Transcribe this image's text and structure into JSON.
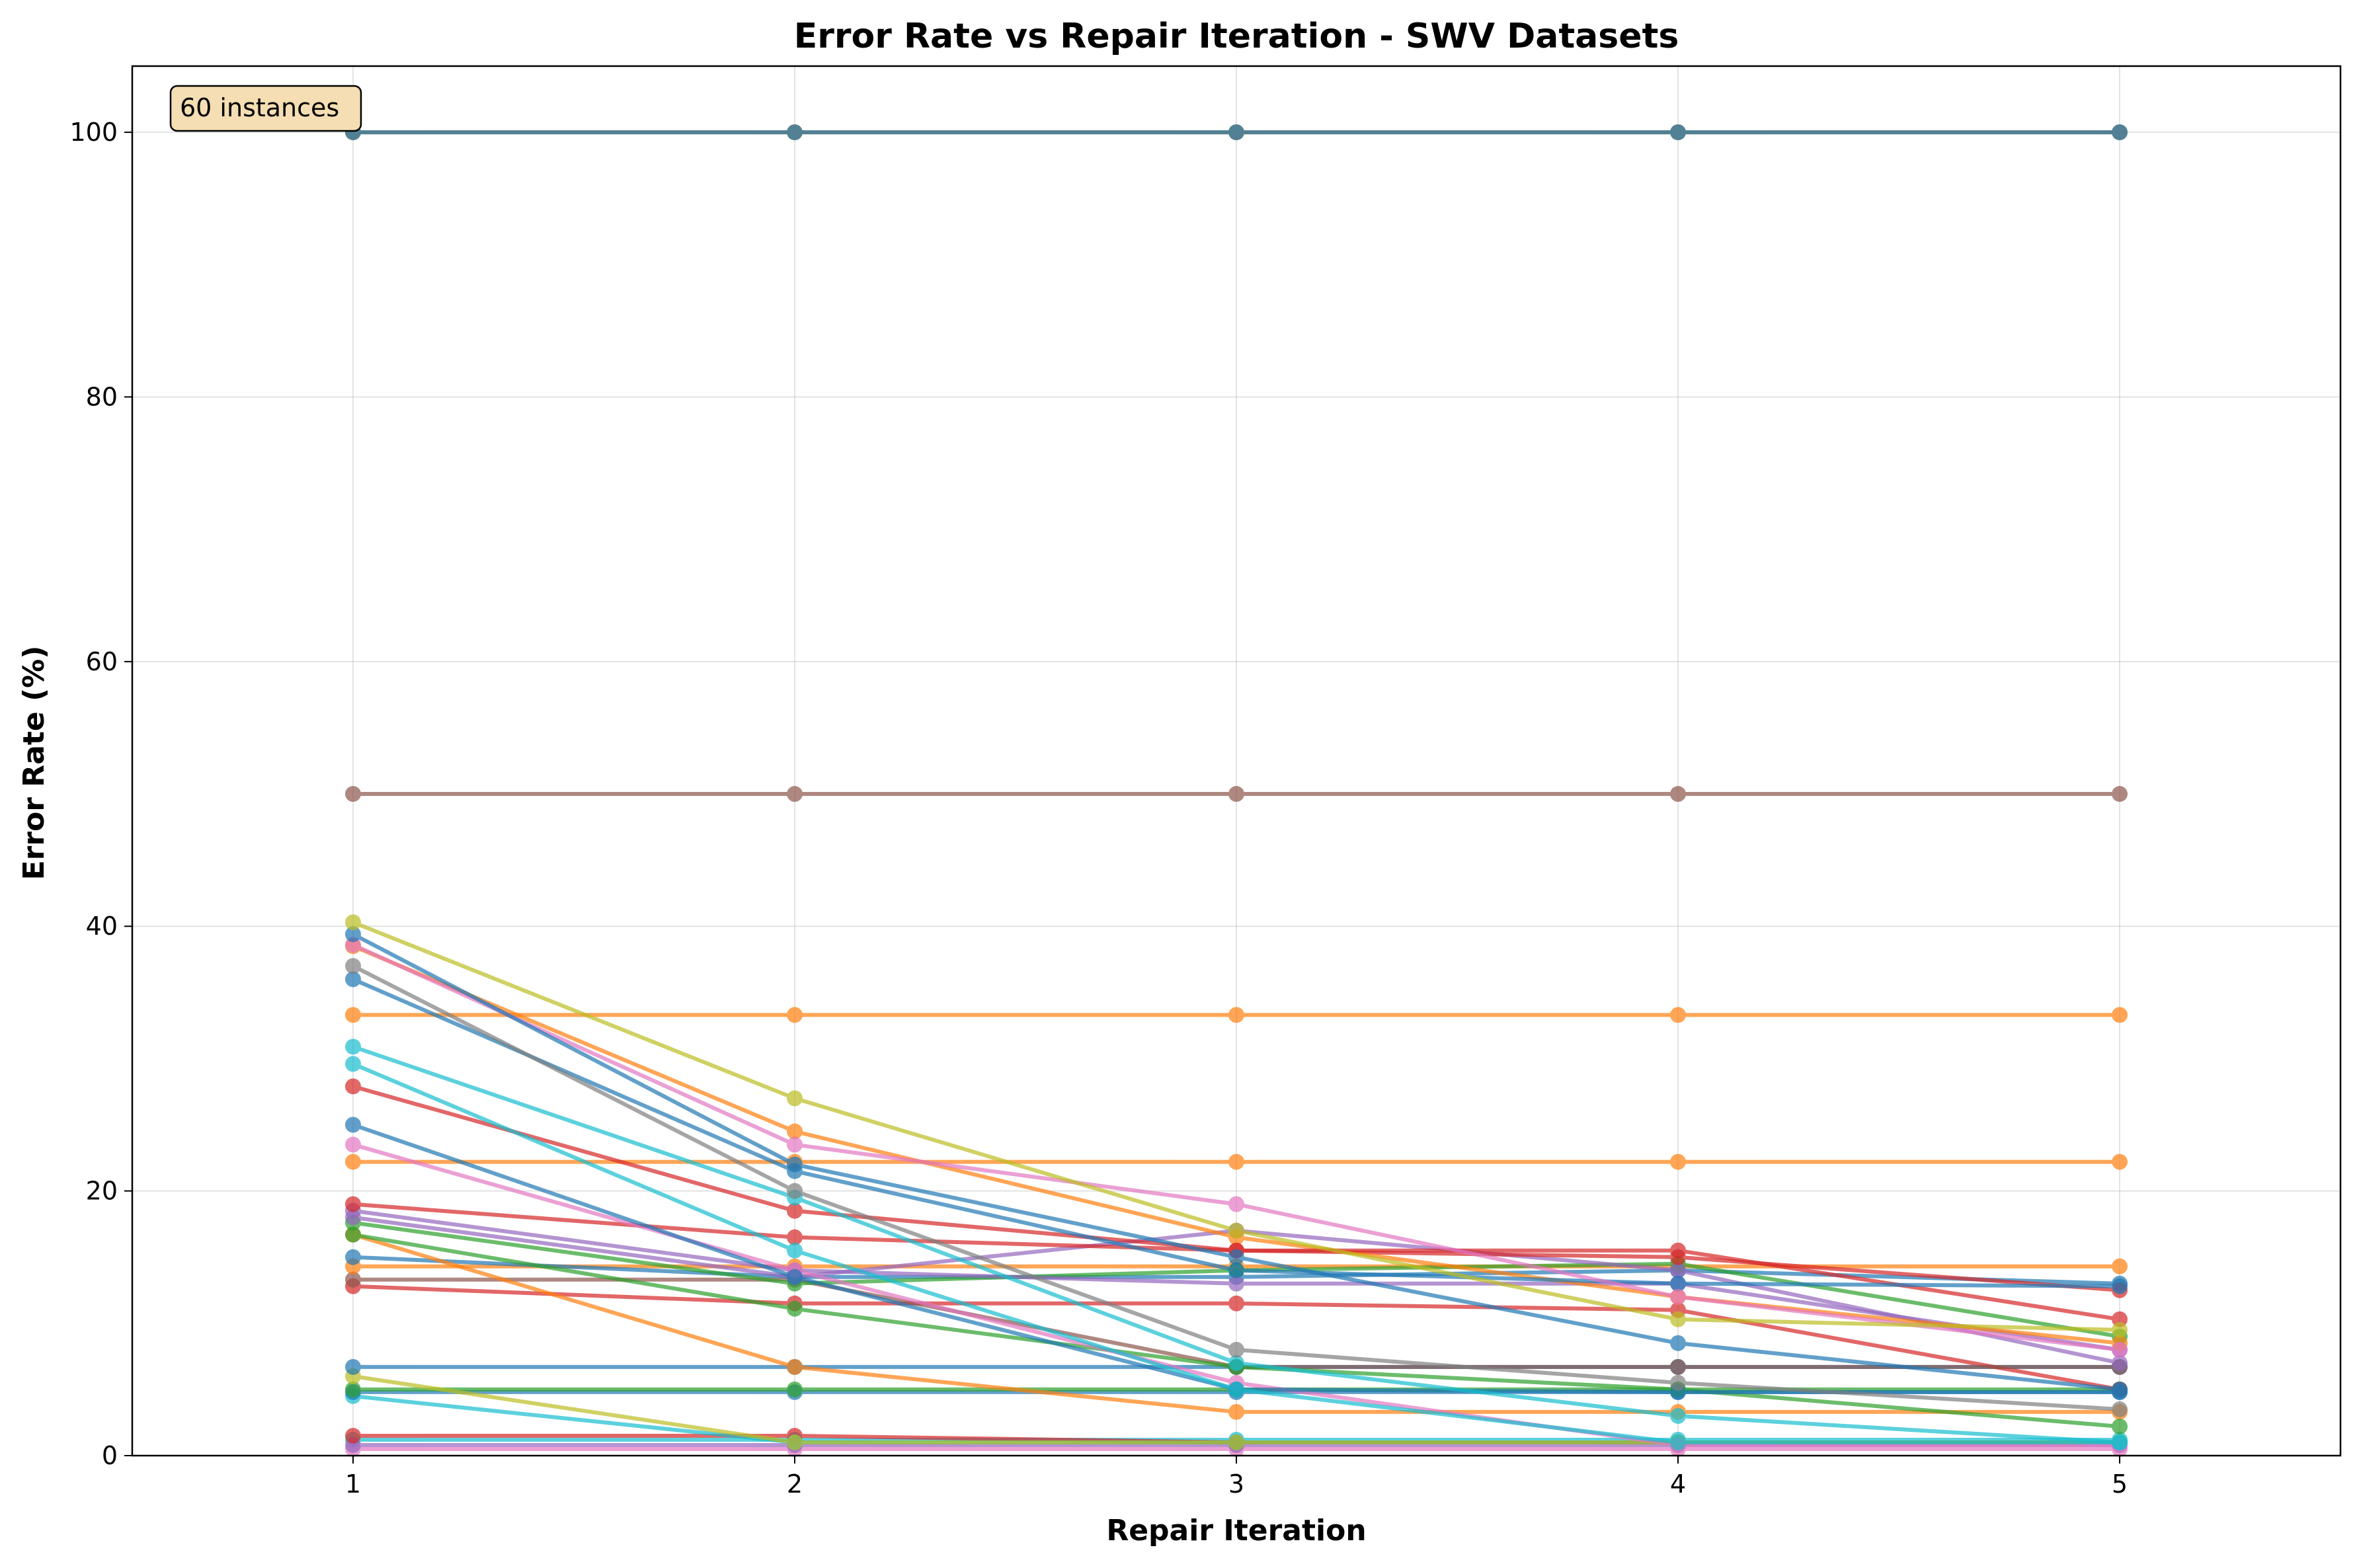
{
  "chart_data": {
    "type": "line",
    "title": "Error Rate vs Repair Iteration - SWV Datasets",
    "xlabel": "Repair Iteration",
    "ylabel": "Error Rate (%)",
    "x": [
      1,
      2,
      3,
      4,
      5
    ],
    "xlim": [
      0.5,
      5.5
    ],
    "ylim": [
      0,
      105
    ],
    "xticks": [
      "1",
      "2",
      "3",
      "4",
      "5"
    ],
    "yticks": [
      "0",
      "20",
      "40",
      "60",
      "80",
      "100"
    ],
    "grid": true,
    "annotation": "60 instances",
    "annotation_position": "top-left",
    "series": [
      {
        "color": "#1f77b4",
        "values": [
          100,
          100,
          100,
          100,
          100
        ]
      },
      {
        "color": "#ff7f0e",
        "values": [
          100,
          100,
          100,
          100,
          100
        ]
      },
      {
        "color": "#17becf",
        "values": [
          100,
          100,
          100,
          100,
          100
        ]
      },
      {
        "color": "#8c564b",
        "values": [
          50,
          50,
          50,
          50,
          50
        ]
      },
      {
        "color": "#bcbd22",
        "values": [
          40.3,
          27.0,
          17.0,
          10.3,
          9.5
        ]
      },
      {
        "color": "#1f77b4",
        "values": [
          39.4,
          22.0,
          15.0,
          8.5,
          5.0
        ]
      },
      {
        "color": "#e377c2",
        "values": [
          38.6,
          23.5,
          19.0,
          12.0,
          8.0
        ]
      },
      {
        "color": "#7f7f7f",
        "values": [
          37.0,
          20.0,
          8.0,
          5.5,
          3.5
        ]
      },
      {
        "color": "#1f77b4",
        "values": [
          36.0,
          21.5,
          14.0,
          13.0,
          12.8
        ]
      },
      {
        "color": "#ff7f0e",
        "values": [
          33.3,
          33.3,
          33.3,
          33.3,
          33.3
        ]
      },
      {
        "color": "#17becf",
        "values": [
          30.9,
          19.5,
          7.0,
          3.0,
          1.0
        ]
      },
      {
        "color": "#17becf",
        "values": [
          29.6,
          15.5,
          5.0,
          1.0,
          1.0
        ]
      },
      {
        "color": "#d62728",
        "values": [
          27.9,
          18.5,
          15.5,
          15.5,
          10.3
        ]
      },
      {
        "color": "#1f77b4",
        "values": [
          25.0,
          13.5,
          5.0,
          4.8,
          4.8
        ]
      },
      {
        "color": "#e377c2",
        "values": [
          23.5,
          14.0,
          5.5,
          0.8,
          0.8
        ]
      },
      {
        "color": "#ff7f0e",
        "values": [
          22.2,
          22.2,
          22.2,
          22.2,
          22.2
        ]
      },
      {
        "color": "#ff7f0e",
        "values": [
          38.5,
          24.5,
          16.5,
          12.0,
          8.5
        ]
      },
      {
        "color": "#d62728",
        "values": [
          19.0,
          16.5,
          15.5,
          15.0,
          12.5
        ]
      },
      {
        "color": "#9467bd",
        "values": [
          18.5,
          14.0,
          13.0,
          13.0,
          8.0
        ]
      },
      {
        "color": "#9467bd",
        "values": [
          18.0,
          13.5,
          17.0,
          14.0,
          7.0
        ]
      },
      {
        "color": "#2ca02c",
        "values": [
          17.6,
          13.0,
          14.0,
          14.5,
          9.0
        ]
      },
      {
        "color": "#2ca02c",
        "values": [
          16.7,
          11.1,
          6.7,
          5.0,
          2.2
        ]
      },
      {
        "color": "#ff7f0e",
        "values": [
          16.7,
          6.7,
          3.3,
          3.3,
          3.3
        ]
      },
      {
        "color": "#1f77b4",
        "values": [
          15.0,
          13.5,
          13.5,
          14.0,
          13.0
        ]
      },
      {
        "color": "#ff7f0e",
        "values": [
          14.3,
          14.3,
          14.3,
          14.3,
          14.3
        ]
      },
      {
        "color": "#8c564b",
        "values": [
          13.3,
          13.3,
          6.7,
          6.7,
          6.7
        ]
      },
      {
        "color": "#d62728",
        "values": [
          12.8,
          11.5,
          11.5,
          11.0,
          5.0
        ]
      },
      {
        "color": "#1f77b4",
        "values": [
          6.7,
          6.7,
          6.7,
          6.7,
          6.7
        ]
      },
      {
        "color": "#bcbd22",
        "values": [
          6.0,
          1.0,
          1.0,
          1.0,
          1.0
        ]
      },
      {
        "color": "#2ca02c",
        "values": [
          5.0,
          5.0,
          5.0,
          5.0,
          5.0
        ]
      },
      {
        "color": "#1f77b4",
        "values": [
          4.8,
          4.8,
          4.8,
          4.8,
          4.8
        ]
      },
      {
        "color": "#17becf",
        "values": [
          4.5,
          1.0,
          1.0,
          1.0,
          1.0
        ]
      },
      {
        "color": "#d62728",
        "values": [
          1.5,
          1.5,
          1.0,
          1.0,
          1.0
        ]
      },
      {
        "color": "#9467bd",
        "values": [
          0.8,
          0.8,
          0.8,
          0.8,
          0.8
        ]
      },
      {
        "color": "#e377c2",
        "values": [
          0.5,
          0.5,
          0.5,
          0.5,
          0.5
        ]
      },
      {
        "color": "#17becf",
        "values": [
          1.2,
          1.2,
          1.2,
          1.2,
          1.2
        ]
      }
    ]
  }
}
